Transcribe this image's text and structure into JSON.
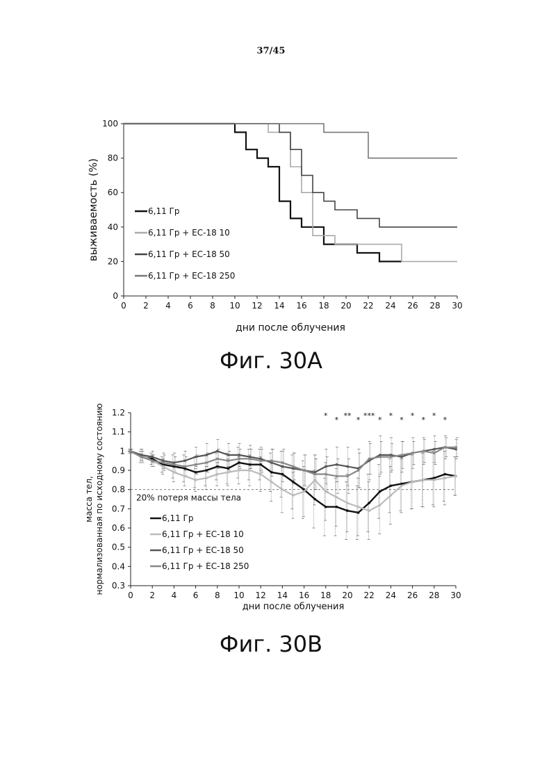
{
  "page_number": "37/45",
  "captions": {
    "a": "Фиг. 30A",
    "b": "Фиг. 30B"
  },
  "chart_data": [
    {
      "type": "line",
      "step": true,
      "xlabel": "дни после облучения",
      "ylabel": "выживаемость (%)",
      "xlim": [
        0,
        30
      ],
      "ylim": [
        0,
        100
      ],
      "xticks": [
        0,
        2,
        4,
        6,
        8,
        10,
        12,
        14,
        16,
        18,
        20,
        22,
        24,
        26,
        28,
        30
      ],
      "yticks": [
        0,
        20,
        40,
        60,
        80,
        100
      ],
      "grid": false,
      "legend_position": "bottom-left",
      "colors": [
        "#111111",
        "#aaaaaa",
        "#444444",
        "#777777"
      ],
      "series": [
        {
          "name": "6,11 Гр",
          "x": [
            0,
            10,
            11,
            12,
            13,
            14,
            15,
            16,
            18,
            21,
            23,
            25
          ],
          "y": [
            100,
            95,
            85,
            80,
            75,
            55,
            45,
            40,
            30,
            25,
            20,
            20
          ]
        },
        {
          "name": "6,11 Гр + ЕС-18 10",
          "x": [
            0,
            13,
            15,
            16,
            17,
            19,
            21,
            25,
            30
          ],
          "y": [
            100,
            95,
            75,
            60,
            35,
            30,
            30,
            20,
            20
          ]
        },
        {
          "name": "6,11 Гр + ЕС-18 50",
          "x": [
            0,
            14,
            15,
            16,
            17,
            18,
            19,
            21,
            23,
            30
          ],
          "y": [
            100,
            95,
            85,
            70,
            60,
            55,
            50,
            45,
            40,
            40
          ]
        },
        {
          "name": "6,11 Гр + ЕС-18 250",
          "x": [
            0,
            18,
            22,
            30
          ],
          "y": [
            100,
            95,
            80,
            80
          ]
        }
      ]
    },
    {
      "type": "line",
      "xlabel": "дни после облучения",
      "ylabel": "масса тел, нормализованная по исходному состоянию",
      "xlim": [
        0,
        30
      ],
      "ylim": [
        0.3,
        1.2
      ],
      "xticks": [
        0,
        2,
        4,
        6,
        8,
        10,
        12,
        14,
        16,
        18,
        20,
        22,
        24,
        26,
        28,
        30
      ],
      "yticks": [
        0.3,
        0.4,
        0.5,
        0.6,
        0.7,
        0.8,
        0.9,
        1,
        1.1,
        1.2
      ],
      "grid": false,
      "legend_position": "bottom-left",
      "colors": [
        "#111111",
        "#bbbbbb",
        "#555555",
        "#888888"
      ],
      "reference_line": {
        "y": 0.8,
        "label": "20% потеря массы тела"
      },
      "significance": [
        {
          "x": 18,
          "label": "*"
        },
        {
          "x": 19,
          "label": "*"
        },
        {
          "x": 20,
          "label": "**"
        },
        {
          "x": 21,
          "label": "*"
        },
        {
          "x": 22,
          "label": "***"
        },
        {
          "x": 23,
          "label": "*"
        },
        {
          "x": 24,
          "label": "*"
        },
        {
          "x": 25,
          "label": "*"
        },
        {
          "x": 26,
          "label": "*"
        },
        {
          "x": 27,
          "label": "*"
        },
        {
          "x": 28,
          "label": "*"
        },
        {
          "x": 29,
          "label": "*"
        }
      ],
      "series": [
        {
          "name": "6,11 Гр",
          "x": [
            0,
            1,
            2,
            3,
            4,
            5,
            6,
            7,
            8,
            9,
            10,
            11,
            12,
            13,
            14,
            15,
            16,
            17,
            18,
            19,
            20,
            21,
            22,
            23,
            24,
            25,
            26,
            27,
            28,
            29,
            30
          ],
          "y": [
            1.0,
            0.97,
            0.96,
            0.93,
            0.92,
            0.91,
            0.89,
            0.9,
            0.92,
            0.91,
            0.94,
            0.93,
            0.93,
            0.89,
            0.88,
            0.84,
            0.8,
            0.75,
            0.71,
            0.71,
            0.69,
            0.68,
            0.73,
            0.79,
            0.82,
            0.83,
            0.84,
            0.85,
            0.86,
            0.88,
            0.87
          ],
          "err": [
            0.01,
            0.03,
            0.03,
            0.04,
            0.06,
            0.07,
            0.08,
            0.08,
            0.07,
            0.08,
            0.08,
            0.08,
            0.08,
            0.1,
            0.12,
            0.14,
            0.15,
            0.15,
            0.15,
            0.15,
            0.15,
            0.14,
            0.15,
            0.14,
            0.14,
            0.14,
            0.14,
            0.14,
            0.14,
            0.14,
            0.1
          ]
        },
        {
          "name": "6,11 Гр + ЕС-18 10",
          "x": [
            0,
            1,
            2,
            3,
            4,
            5,
            6,
            7,
            8,
            9,
            10,
            11,
            12,
            13,
            14,
            15,
            16,
            17,
            18,
            19,
            20,
            21,
            22,
            23,
            24,
            25,
            26,
            27,
            28,
            29,
            30
          ],
          "y": [
            1.0,
            0.98,
            0.95,
            0.92,
            0.89,
            0.87,
            0.85,
            0.86,
            0.88,
            0.89,
            0.9,
            0.9,
            0.88,
            0.84,
            0.8,
            0.77,
            0.79,
            0.85,
            0.79,
            0.76,
            0.73,
            0.71,
            0.69,
            0.72,
            0.77,
            0.82,
            0.84,
            0.85,
            0.85,
            0.86,
            0.87
          ],
          "err": [
            0.01,
            0.03,
            0.03,
            0.04,
            0.05,
            0.05,
            0.06,
            0.06,
            0.06,
            0.07,
            0.07,
            0.08,
            0.09,
            0.1,
            0.12,
            0.12,
            0.13,
            0.13,
            0.15,
            0.15,
            0.15,
            0.15,
            0.15,
            0.15,
            0.15,
            0.14,
            0.14,
            0.14,
            0.14,
            0.14,
            0.1
          ]
        },
        {
          "name": "6,11 Гр + ЕС-18 50",
          "x": [
            0,
            1,
            2,
            3,
            4,
            5,
            6,
            7,
            8,
            9,
            10,
            11,
            12,
            13,
            14,
            15,
            16,
            17,
            18,
            19,
            20,
            21,
            22,
            23,
            24,
            25,
            26,
            27,
            28,
            29,
            30
          ],
          "y": [
            1.0,
            0.98,
            0.97,
            0.95,
            0.94,
            0.95,
            0.97,
            0.98,
            1.0,
            0.98,
            0.98,
            0.97,
            0.96,
            0.94,
            0.92,
            0.91,
            0.9,
            0.89,
            0.92,
            0.93,
            0.92,
            0.91,
            0.95,
            0.98,
            0.98,
            0.97,
            0.99,
            1.0,
            1.01,
            1.02,
            1.01
          ],
          "err": [
            0.01,
            0.03,
            0.03,
            0.04,
            0.05,
            0.05,
            0.05,
            0.06,
            0.06,
            0.06,
            0.06,
            0.06,
            0.06,
            0.07,
            0.08,
            0.08,
            0.08,
            0.09,
            0.09,
            0.09,
            0.1,
            0.1,
            0.1,
            0.1,
            0.09,
            0.08,
            0.08,
            0.07,
            0.07,
            0.06,
            0.05
          ]
        },
        {
          "name": "6,11 Гр + ЕС-18 250",
          "x": [
            0,
            1,
            2,
            3,
            4,
            5,
            6,
            7,
            8,
            9,
            10,
            11,
            12,
            13,
            14,
            15,
            16,
            17,
            18,
            19,
            20,
            21,
            22,
            23,
            24,
            25,
            26,
            27,
            28,
            29,
            30
          ],
          "y": [
            1.0,
            0.97,
            0.95,
            0.94,
            0.93,
            0.92,
            0.93,
            0.94,
            0.96,
            0.95,
            0.96,
            0.96,
            0.95,
            0.95,
            0.94,
            0.92,
            0.9,
            0.88,
            0.88,
            0.87,
            0.87,
            0.9,
            0.96,
            0.97,
            0.97,
            0.98,
            0.99,
            1.0,
            0.99,
            1.02,
            1.02
          ],
          "err": [
            0.01,
            0.03,
            0.03,
            0.04,
            0.04,
            0.05,
            0.05,
            0.05,
            0.05,
            0.05,
            0.05,
            0.05,
            0.06,
            0.06,
            0.07,
            0.07,
            0.08,
            0.08,
            0.09,
            0.09,
            0.09,
            0.09,
            0.08,
            0.08,
            0.07,
            0.07,
            0.06,
            0.06,
            0.06,
            0.05,
            0.05
          ]
        }
      ]
    }
  ]
}
